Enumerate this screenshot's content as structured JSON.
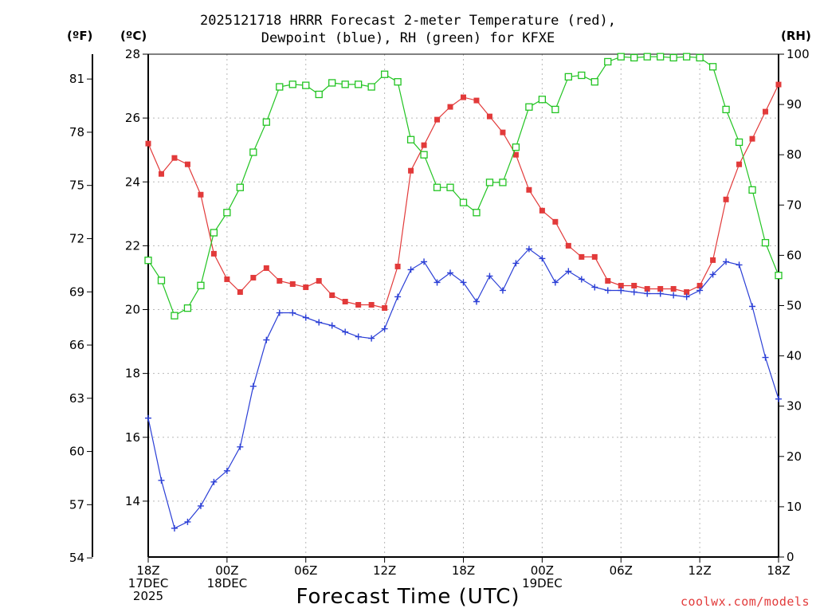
{
  "chart_data": {
    "type": "line",
    "title_line1": "2025121718 HRRR Forecast 2-meter Temperature (red),",
    "title_line2": "Dewpoint (blue), RH (green) for KFXE",
    "xlabel": "Forecast Time (UTC)",
    "ylabel_f": "(ºF)",
    "ylabel_c": "(ºC)",
    "ylabel_rh": "(RH)",
    "credit": "coolwx.com/models",
    "x_range": [
      0,
      48
    ],
    "yc_range": [
      12.25,
      28
    ],
    "rh_range": [
      0,
      100
    ],
    "grid": true,
    "x_ticks": [
      {
        "x": 0,
        "lines": [
          "18Z",
          "17DEC",
          "2025"
        ]
      },
      {
        "x": 6,
        "lines": [
          "00Z",
          "18DEC"
        ]
      },
      {
        "x": 12,
        "lines": [
          "06Z"
        ]
      },
      {
        "x": 18,
        "lines": [
          "12Z"
        ]
      },
      {
        "x": 24,
        "lines": [
          "18Z"
        ]
      },
      {
        "x": 30,
        "lines": [
          "00Z",
          "19DEC"
        ]
      },
      {
        "x": 36,
        "lines": [
          "06Z"
        ]
      },
      {
        "x": 42,
        "lines": [
          "12Z"
        ]
      },
      {
        "x": 48,
        "lines": [
          "18Z"
        ]
      }
    ],
    "c_ticks": [
      14,
      16,
      18,
      20,
      22,
      24,
      26,
      28
    ],
    "f_ticks": [
      54,
      57,
      60,
      63,
      66,
      69,
      72,
      75,
      78,
      81
    ],
    "rh_ticks": [
      0,
      10,
      20,
      30,
      40,
      50,
      60,
      70,
      80,
      90,
      100
    ],
    "series": [
      {
        "name": "Temperature",
        "unit": "C",
        "color": "#e23a3a",
        "marker": "filled-square",
        "values": [
          25.2,
          24.25,
          24.75,
          24.55,
          23.6,
          21.75,
          20.95,
          20.55,
          21.0,
          21.3,
          20.9,
          20.8,
          20.7,
          20.9,
          20.45,
          20.25,
          20.15,
          20.15,
          20.05,
          21.35,
          24.35,
          25.15,
          25.95,
          26.35,
          26.65,
          26.55,
          26.05,
          25.55,
          24.85,
          23.75,
          23.1,
          22.75,
          22.0,
          21.65,
          21.65,
          20.9,
          20.75,
          20.75,
          20.65,
          20.65,
          20.65,
          20.55,
          20.75,
          21.55,
          23.45,
          24.55,
          25.35,
          26.2,
          27.05
        ]
      },
      {
        "name": "Dewpoint",
        "unit": "C",
        "color": "#2b3fd6",
        "marker": "plus",
        "values": [
          16.6,
          14.65,
          13.15,
          13.35,
          13.85,
          14.6,
          14.95,
          15.7,
          17.6,
          19.05,
          19.9,
          19.9,
          19.75,
          19.6,
          19.5,
          19.3,
          19.15,
          19.1,
          19.4,
          20.4,
          21.25,
          21.5,
          20.85,
          21.15,
          20.85,
          20.25,
          21.05,
          20.6,
          21.45,
          21.9,
          21.6,
          20.85,
          21.2,
          20.95,
          20.7,
          20.6,
          20.6,
          20.55,
          20.5,
          20.5,
          20.45,
          20.4,
          20.6,
          21.1,
          21.5,
          21.4,
          20.1,
          18.5,
          17.2
        ]
      },
      {
        "name": "RH",
        "unit": "%",
        "color": "#22c422",
        "marker": "open-square",
        "values": [
          59.0,
          55.0,
          48.0,
          49.5,
          54.0,
          64.5,
          68.5,
          73.5,
          80.5,
          86.5,
          93.5,
          94.0,
          93.8,
          92.0,
          94.3,
          94.0,
          94.0,
          93.5,
          96.0,
          94.5,
          83.0,
          80.0,
          73.5,
          73.5,
          70.5,
          68.5,
          74.5,
          74.5,
          81.5,
          89.5,
          91.0,
          89.0,
          95.5,
          95.8,
          94.5,
          98.5,
          99.5,
          99.3,
          99.5,
          99.5,
          99.3,
          99.5,
          99.3,
          97.5,
          89.0,
          82.5,
          73.0,
          62.5,
          56.0
        ]
      }
    ]
  }
}
